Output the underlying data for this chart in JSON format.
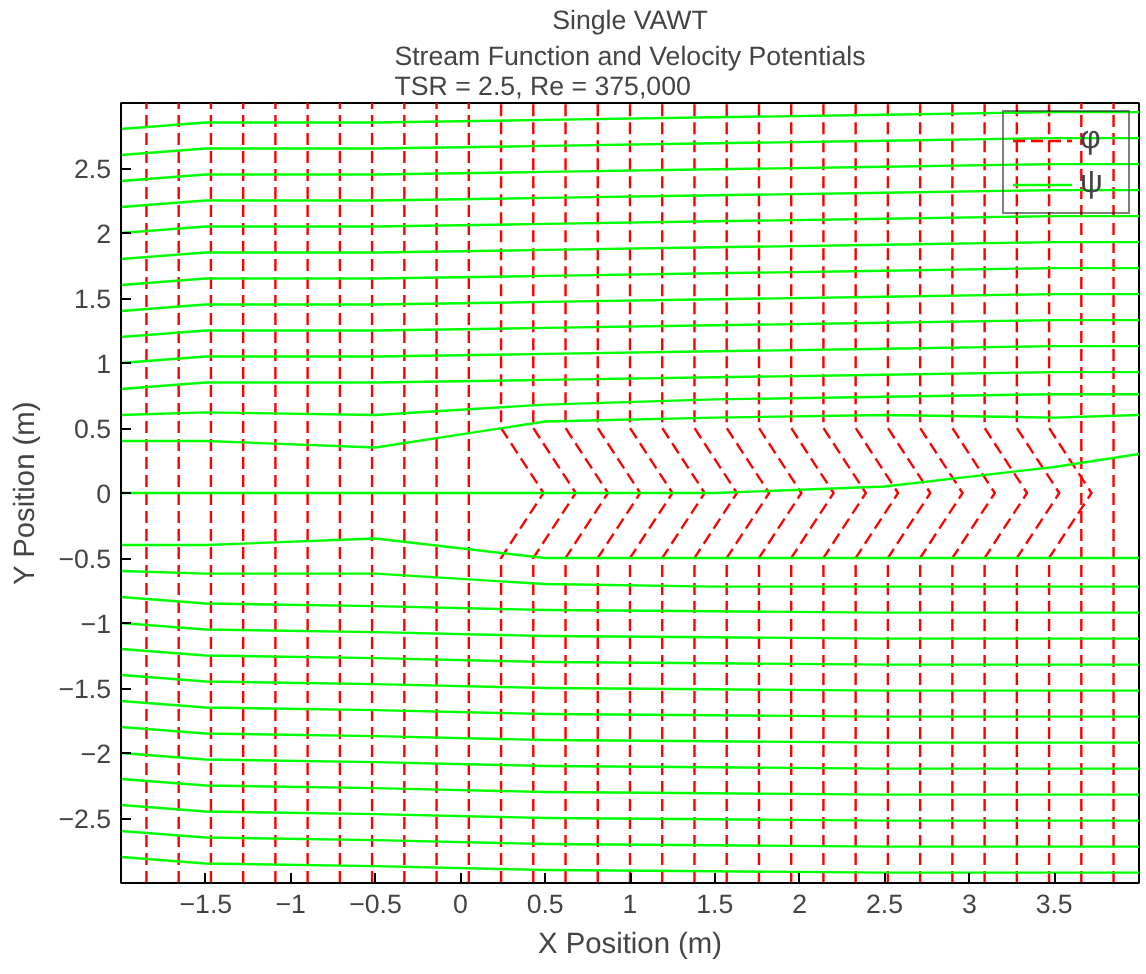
{
  "chart_data": {
    "type": "line",
    "title": "Single VAWT",
    "subtitle": "Stream Function and Velocity Potentials\nTSR = 2.5, Re = 375,000",
    "xlabel": "X Position (m)",
    "ylabel": "Y Position (m)",
    "xlim": [
      -2,
      4
    ],
    "ylim": [
      -3,
      3
    ],
    "xticks": [
      -1.5,
      -1,
      -0.5,
      0,
      0.5,
      1,
      1.5,
      2,
      2.5,
      3,
      3.5
    ],
    "yticks": [
      -2.5,
      -2,
      -1.5,
      -1,
      -0.5,
      0,
      0.5,
      1,
      1.5,
      2,
      2.5
    ],
    "grid": false,
    "legend": "top right",
    "x": [
      -2,
      -1.5,
      -0.5,
      0.5,
      1.5,
      2.5,
      3.5,
      4
    ],
    "series": [
      {
        "name": "φ",
        "color": "#ff0000",
        "line_style": "dashed",
        "x": [
          -1.85,
          -1.85,
          -1.85,
          -1.85,
          -1.85,
          -1.85,
          -1.85,
          -1.85,
          -1.85
        ],
        "values": [
          -3,
          -2,
          -1,
          -0.5,
          0,
          0.5,
          1,
          2,
          3
        ]
      },
      {
        "color": "#ff0000",
        "line_style": "dashed",
        "x": [
          -1.66,
          -1.66,
          -1.66,
          -1.66,
          -1.66,
          -1.66,
          -1.66,
          -1.66,
          -1.66
        ],
        "values": [
          -3,
          -2,
          -1,
          -0.5,
          0,
          0.5,
          1,
          2,
          3
        ]
      },
      {
        "color": "#ff0000",
        "line_style": "dashed",
        "x": [
          -1.47,
          -1.47,
          -1.47,
          -1.47,
          -1.47,
          -1.47,
          -1.47,
          -1.47,
          -1.47
        ],
        "values": [
          -3,
          -2,
          -1,
          -0.5,
          0,
          0.5,
          1,
          2,
          3
        ]
      },
      {
        "color": "#ff0000",
        "line_style": "dashed",
        "x": [
          -1.28,
          -1.28,
          -1.28,
          -1.28,
          -1.28,
          -1.28,
          -1.28,
          -1.28,
          -1.28
        ],
        "values": [
          -3,
          -2,
          -1,
          -0.5,
          0,
          0.5,
          1,
          2,
          3
        ]
      },
      {
        "color": "#ff0000",
        "line_style": "dashed",
        "x": [
          -1.09,
          -1.09,
          -1.09,
          -1.09,
          -1.09,
          -1.09,
          -1.09,
          -1.09,
          -1.09
        ],
        "values": [
          -3,
          -2,
          -1,
          -0.5,
          0,
          0.5,
          1,
          2,
          3
        ]
      },
      {
        "color": "#ff0000",
        "line_style": "dashed",
        "x": [
          -0.9,
          -0.9,
          -0.9,
          -0.9,
          -0.9,
          -0.9,
          -0.9,
          -0.9,
          -0.9
        ],
        "values": [
          -3,
          -2,
          -1,
          -0.5,
          0,
          0.5,
          1,
          2,
          3
        ]
      },
      {
        "color": "#ff0000",
        "line_style": "dashed",
        "x": [
          -0.71,
          -0.71,
          -0.71,
          -0.71,
          -0.71,
          -0.71,
          -0.71,
          -0.71,
          -0.71
        ],
        "values": [
          -3,
          -2,
          -1,
          -0.5,
          0,
          0.5,
          1,
          2,
          3
        ]
      },
      {
        "color": "#ff0000",
        "line_style": "dashed",
        "x": [
          -0.52,
          -0.52,
          -0.52,
          -0.52,
          -0.52,
          -0.52,
          -0.52,
          -0.52,
          -0.52
        ],
        "values": [
          -3,
          -2,
          -1,
          -0.5,
          0,
          0.5,
          1,
          2,
          3
        ]
      },
      {
        "color": "#ff0000",
        "line_style": "dashed",
        "x": [
          -0.33,
          -0.33,
          -0.33,
          -0.33,
          -0.33,
          -0.33,
          -0.33,
          -0.33,
          -0.33
        ],
        "values": [
          -3,
          -2,
          -1,
          -0.5,
          0,
          0.5,
          1,
          2,
          3
        ]
      },
      {
        "color": "#ff0000",
        "line_style": "dashed",
        "x": [
          -0.14,
          -0.14,
          -0.14,
          -0.14,
          -0.14,
          -0.14,
          -0.14,
          -0.14,
          -0.14
        ],
        "values": [
          -3,
          -2,
          -1,
          -0.5,
          0,
          0.5,
          1,
          2,
          3
        ]
      },
      {
        "color": "#ff0000",
        "line_style": "dashed",
        "x": [
          0.05,
          0.05,
          0.05,
          0.05,
          0.05,
          0.05,
          0.05,
          0.05,
          0.05
        ],
        "values": [
          -3,
          -2,
          -1,
          -0.5,
          0,
          0.5,
          1,
          2,
          3
        ]
      },
      {
        "color": "#ff0000",
        "line_style": "dashed",
        "x": [
          0.24,
          0.24,
          0.24,
          0.24,
          0.49,
          0.24,
          0.24,
          0.24,
          0.24
        ],
        "values": [
          -3,
          -2,
          -1,
          -0.5,
          0,
          0.5,
          1,
          2,
          3
        ]
      },
      {
        "color": "#ff0000",
        "line_style": "dashed",
        "x": [
          0.43,
          0.43,
          0.43,
          0.43,
          0.68,
          0.43,
          0.43,
          0.43,
          0.43
        ],
        "values": [
          -3,
          -2,
          -1,
          -0.5,
          0,
          0.5,
          1,
          2,
          3
        ]
      },
      {
        "color": "#ff0000",
        "line_style": "dashed",
        "x": [
          0.62,
          0.62,
          0.62,
          0.62,
          0.87,
          0.62,
          0.62,
          0.62,
          0.62
        ],
        "values": [
          -3,
          -2,
          -1,
          -0.5,
          0,
          0.5,
          1,
          2,
          3
        ]
      },
      {
        "color": "#ff0000",
        "line_style": "dashed",
        "x": [
          0.81,
          0.81,
          0.81,
          0.81,
          1.06,
          0.81,
          0.81,
          0.81,
          0.81
        ],
        "values": [
          -3,
          -2,
          -1,
          -0.5,
          0,
          0.5,
          1,
          2,
          3
        ]
      },
      {
        "color": "#ff0000",
        "line_style": "dashed",
        "x": [
          1.0,
          1.0,
          1.0,
          1.0,
          1.25,
          1.0,
          1.0,
          1.0,
          1.0
        ],
        "values": [
          -3,
          -2,
          -1,
          -0.5,
          0,
          0.5,
          1,
          2,
          3
        ]
      },
      {
        "color": "#ff0000",
        "line_style": "dashed",
        "x": [
          1.19,
          1.19,
          1.19,
          1.19,
          1.44,
          1.19,
          1.19,
          1.19,
          1.19
        ],
        "values": [
          -3,
          -2,
          -1,
          -0.5,
          0,
          0.5,
          1,
          2,
          3
        ]
      },
      {
        "color": "#ff0000",
        "line_style": "dashed",
        "x": [
          1.38,
          1.38,
          1.38,
          1.38,
          1.63,
          1.38,
          1.38,
          1.38,
          1.38
        ],
        "values": [
          -3,
          -2,
          -1,
          -0.5,
          0,
          0.5,
          1,
          2,
          3
        ]
      },
      {
        "color": "#ff0000",
        "line_style": "dashed",
        "x": [
          1.57,
          1.57,
          1.57,
          1.57,
          1.82,
          1.57,
          1.57,
          1.57,
          1.57
        ],
        "values": [
          -3,
          -2,
          -1,
          -0.5,
          0,
          0.5,
          1,
          2,
          3
        ]
      },
      {
        "color": "#ff0000",
        "line_style": "dashed",
        "x": [
          1.76,
          1.76,
          1.76,
          1.76,
          2.01,
          1.76,
          1.76,
          1.76,
          1.76
        ],
        "values": [
          -3,
          -2,
          -1,
          -0.5,
          0,
          0.5,
          1,
          2,
          3
        ]
      },
      {
        "color": "#ff0000",
        "line_style": "dashed",
        "x": [
          1.95,
          1.95,
          1.95,
          1.95,
          2.2,
          1.95,
          1.95,
          1.95,
          1.95
        ],
        "values": [
          -3,
          -2,
          -1,
          -0.5,
          0,
          0.5,
          1,
          2,
          3
        ]
      },
      {
        "color": "#ff0000",
        "line_style": "dashed",
        "x": [
          2.14,
          2.14,
          2.14,
          2.14,
          2.39,
          2.14,
          2.14,
          2.14,
          2.14
        ],
        "values": [
          -3,
          -2,
          -1,
          -0.5,
          0,
          0.5,
          1,
          2,
          3
        ]
      },
      {
        "color": "#ff0000",
        "line_style": "dashed",
        "x": [
          2.33,
          2.33,
          2.33,
          2.33,
          2.58,
          2.33,
          2.33,
          2.33,
          2.33
        ],
        "values": [
          -3,
          -2,
          -1,
          -0.5,
          0,
          0.5,
          1,
          2,
          3
        ]
      },
      {
        "color": "#ff0000",
        "line_style": "dashed",
        "x": [
          2.52,
          2.52,
          2.52,
          2.52,
          2.77,
          2.52,
          2.52,
          2.52,
          2.52
        ],
        "values": [
          -3,
          -2,
          -1,
          -0.5,
          0,
          0.5,
          1,
          2,
          3
        ]
      },
      {
        "color": "#ff0000",
        "line_style": "dashed",
        "x": [
          2.71,
          2.71,
          2.71,
          2.71,
          2.96,
          2.71,
          2.71,
          2.71,
          2.71
        ],
        "values": [
          -3,
          -2,
          -1,
          -0.5,
          0,
          0.5,
          1,
          2,
          3
        ]
      },
      {
        "color": "#ff0000",
        "line_style": "dashed",
        "x": [
          2.9,
          2.9,
          2.9,
          2.9,
          3.15,
          2.9,
          2.9,
          2.9,
          2.9
        ],
        "values": [
          -3,
          -2,
          -1,
          -0.5,
          0,
          0.5,
          1,
          2,
          3
        ]
      },
      {
        "color": "#ff0000",
        "line_style": "dashed",
        "x": [
          3.09,
          3.09,
          3.09,
          3.09,
          3.34,
          3.09,
          3.09,
          3.09,
          3.09
        ],
        "values": [
          -3,
          -2,
          -1,
          -0.5,
          0,
          0.5,
          1,
          2,
          3
        ]
      },
      {
        "color": "#ff0000",
        "line_style": "dashed",
        "x": [
          3.28,
          3.28,
          3.28,
          3.28,
          3.53,
          3.28,
          3.28,
          3.28,
          3.28
        ],
        "values": [
          -3,
          -2,
          -1,
          -0.5,
          0,
          0.5,
          1,
          2,
          3
        ]
      },
      {
        "color": "#ff0000",
        "line_style": "dashed",
        "x": [
          3.47,
          3.47,
          3.47,
          3.47,
          3.72,
          3.47,
          3.47,
          3.47,
          3.47
        ],
        "values": [
          -3,
          -2,
          -1,
          -0.5,
          0,
          0.5,
          1,
          2,
          3
        ]
      },
      {
        "color": "#ff0000",
        "line_style": "dashed",
        "x": [
          3.66,
          3.66,
          3.66,
          3.66,
          3.66,
          3.66,
          3.66,
          3.66,
          3.66
        ],
        "values": [
          -3,
          -2,
          -1,
          -0.5,
          0,
          0.5,
          1,
          2,
          3
        ]
      },
      {
        "color": "#ff0000",
        "line_style": "dashed",
        "x": [
          3.85,
          3.85,
          3.85,
          3.85,
          3.85,
          3.85,
          3.85,
          3.85,
          3.85
        ],
        "values": [
          -3,
          -2,
          -1,
          -0.5,
          0,
          0.5,
          1,
          2,
          3
        ]
      },
      {
        "name": "ψ",
        "color": "#00ff00",
        "line_style": "solid",
        "values": [
          2.8,
          2.85,
          2.85,
          2.87,
          2.89,
          2.91,
          2.93,
          2.93
        ]
      },
      {
        "color": "#00ff00",
        "line_style": "solid",
        "values": [
          2.6,
          2.65,
          2.65,
          2.67,
          2.69,
          2.71,
          2.73,
          2.73
        ]
      },
      {
        "color": "#00ff00",
        "line_style": "solid",
        "values": [
          2.4,
          2.45,
          2.45,
          2.47,
          2.49,
          2.51,
          2.53,
          2.53
        ]
      },
      {
        "color": "#00ff00",
        "line_style": "solid",
        "values": [
          2.2,
          2.25,
          2.25,
          2.27,
          2.29,
          2.31,
          2.33,
          2.33
        ]
      },
      {
        "color": "#00ff00",
        "line_style": "solid",
        "values": [
          2.0,
          2.05,
          2.05,
          2.07,
          2.09,
          2.11,
          2.13,
          2.13
        ]
      },
      {
        "color": "#00ff00",
        "line_style": "solid",
        "values": [
          1.8,
          1.85,
          1.85,
          1.87,
          1.89,
          1.91,
          1.93,
          1.93
        ]
      },
      {
        "color": "#00ff00",
        "line_style": "solid",
        "values": [
          1.6,
          1.65,
          1.65,
          1.67,
          1.69,
          1.71,
          1.73,
          1.73
        ]
      },
      {
        "color": "#00ff00",
        "line_style": "solid",
        "values": [
          1.4,
          1.45,
          1.45,
          1.47,
          1.49,
          1.51,
          1.53,
          1.53
        ]
      },
      {
        "color": "#00ff00",
        "line_style": "solid",
        "values": [
          1.2,
          1.25,
          1.25,
          1.27,
          1.29,
          1.31,
          1.33,
          1.33
        ]
      },
      {
        "color": "#00ff00",
        "line_style": "solid",
        "values": [
          1.0,
          1.05,
          1.05,
          1.07,
          1.09,
          1.11,
          1.13,
          1.13
        ]
      },
      {
        "color": "#00ff00",
        "line_style": "solid",
        "values": [
          0.8,
          0.85,
          0.85,
          0.87,
          0.89,
          0.91,
          0.93,
          0.93
        ]
      },
      {
        "color": "#00ff00",
        "line_style": "solid",
        "values": [
          0.6,
          0.62,
          0.6,
          0.68,
          0.72,
          0.74,
          0.76,
          0.76
        ]
      },
      {
        "color": "#00ff00",
        "line_style": "solid",
        "values": [
          0.4,
          0.4,
          0.35,
          0.55,
          0.58,
          0.6,
          0.58,
          0.6
        ]
      },
      {
        "color": "#00ff00",
        "line_style": "solid",
        "values": [
          0.0,
          0.0,
          0.0,
          0.0,
          0.0,
          0.05,
          0.2,
          0.3
        ]
      },
      {
        "color": "#00ff00",
        "line_style": "solid",
        "values": [
          -0.4,
          -0.4,
          -0.35,
          -0.5,
          -0.5,
          -0.5,
          -0.5,
          -0.5
        ]
      },
      {
        "color": "#00ff00",
        "line_style": "solid",
        "values": [
          -0.6,
          -0.62,
          -0.62,
          -0.7,
          -0.72,
          -0.72,
          -0.72,
          -0.72
        ]
      },
      {
        "color": "#00ff00",
        "line_style": "solid",
        "values": [
          -0.8,
          -0.85,
          -0.87,
          -0.9,
          -0.91,
          -0.92,
          -0.92,
          -0.92
        ]
      },
      {
        "color": "#00ff00",
        "line_style": "solid",
        "values": [
          -1.0,
          -1.05,
          -1.07,
          -1.1,
          -1.11,
          -1.12,
          -1.12,
          -1.12
        ]
      },
      {
        "color": "#00ff00",
        "line_style": "solid",
        "values": [
          -1.2,
          -1.25,
          -1.27,
          -1.3,
          -1.31,
          -1.32,
          -1.32,
          -1.32
        ]
      },
      {
        "color": "#00ff00",
        "line_style": "solid",
        "values": [
          -1.4,
          -1.45,
          -1.47,
          -1.5,
          -1.51,
          -1.52,
          -1.52,
          -1.52
        ]
      },
      {
        "color": "#00ff00",
        "line_style": "solid",
        "values": [
          -1.6,
          -1.65,
          -1.67,
          -1.7,
          -1.71,
          -1.72,
          -1.72,
          -1.72
        ]
      },
      {
        "color": "#00ff00",
        "line_style": "solid",
        "values": [
          -1.8,
          -1.85,
          -1.87,
          -1.9,
          -1.91,
          -1.92,
          -1.92,
          -1.92
        ]
      },
      {
        "color": "#00ff00",
        "line_style": "solid",
        "values": [
          -2.0,
          -2.05,
          -2.07,
          -2.1,
          -2.11,
          -2.12,
          -2.12,
          -2.12
        ]
      },
      {
        "color": "#00ff00",
        "line_style": "solid",
        "values": [
          -2.2,
          -2.25,
          -2.27,
          -2.3,
          -2.31,
          -2.32,
          -2.32,
          -2.32
        ]
      },
      {
        "color": "#00ff00",
        "line_style": "solid",
        "values": [
          -2.4,
          -2.45,
          -2.47,
          -2.5,
          -2.51,
          -2.52,
          -2.52,
          -2.52
        ]
      },
      {
        "color": "#00ff00",
        "line_style": "solid",
        "values": [
          -2.6,
          -2.65,
          -2.67,
          -2.7,
          -2.71,
          -2.72,
          -2.72,
          -2.72
        ]
      },
      {
        "color": "#00ff00",
        "line_style": "solid",
        "values": [
          -2.8,
          -2.85,
          -2.87,
          -2.9,
          -2.91,
          -2.92,
          -2.92,
          -2.92
        ]
      }
    ]
  }
}
